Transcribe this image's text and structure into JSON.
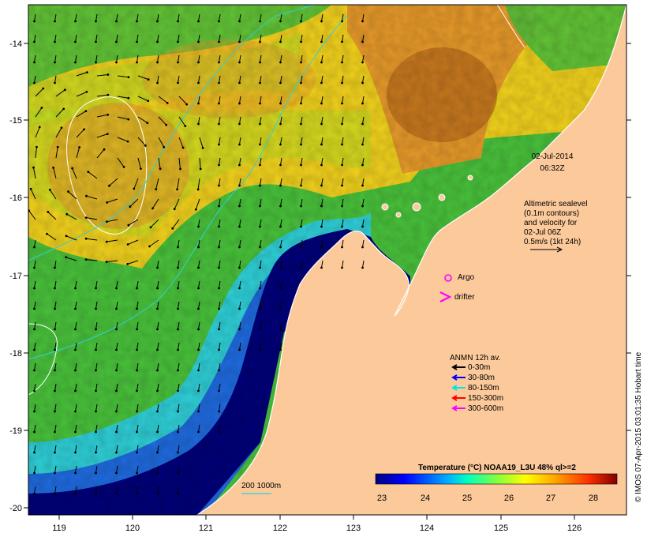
{
  "datetime": {
    "date": "02-Jul-2014",
    "time": "06:32Z"
  },
  "altimetry": {
    "lines": [
      "Altimetric sealevel",
      "(0.1m contours)",
      "and velocity for",
      "02-Jul 06Z",
      "0.5m/s (1kt 24h)"
    ]
  },
  "markers": {
    "argo": "Argo",
    "drifter": "drifter"
  },
  "anmn": {
    "title": "ANMN 12h av.",
    "items": [
      {
        "label": "0-30m",
        "color": "#000000"
      },
      {
        "label": "30-80m",
        "color": "#0000ff"
      },
      {
        "label": "80-150m",
        "color": "#00e5e5"
      },
      {
        "label": "150-300m",
        "color": "#ff0000"
      },
      {
        "label": "300-600m",
        "color": "#ff00ff"
      }
    ]
  },
  "colorbar": {
    "title": "Temperature (°C) NOAA19_L3U 48% ql>=2",
    "ticks": [
      "23",
      "24",
      "25",
      "26",
      "27",
      "28"
    ]
  },
  "isobath_label": "200  1000m",
  "credit": "© IMOS 07-Apr-2015 03:01:35 Hobart time",
  "axes": {
    "lon_ticks": [
      "119",
      "120",
      "121",
      "122",
      "123",
      "124",
      "125",
      "126"
    ],
    "lat_ticks": [
      "-14",
      "-15",
      "-16",
      "-17",
      "-18",
      "-19",
      "-20"
    ]
  },
  "colors": {
    "land": "#fcc99b",
    "cold": "#00007a",
    "blue": "#1f6be0",
    "cyan": "#2fd0d8",
    "green": "#49c23b",
    "lime": "#b4e024",
    "yellow": "#f2d21d",
    "orange": "#e79a2a",
    "brown": "#b86a1a"
  }
}
